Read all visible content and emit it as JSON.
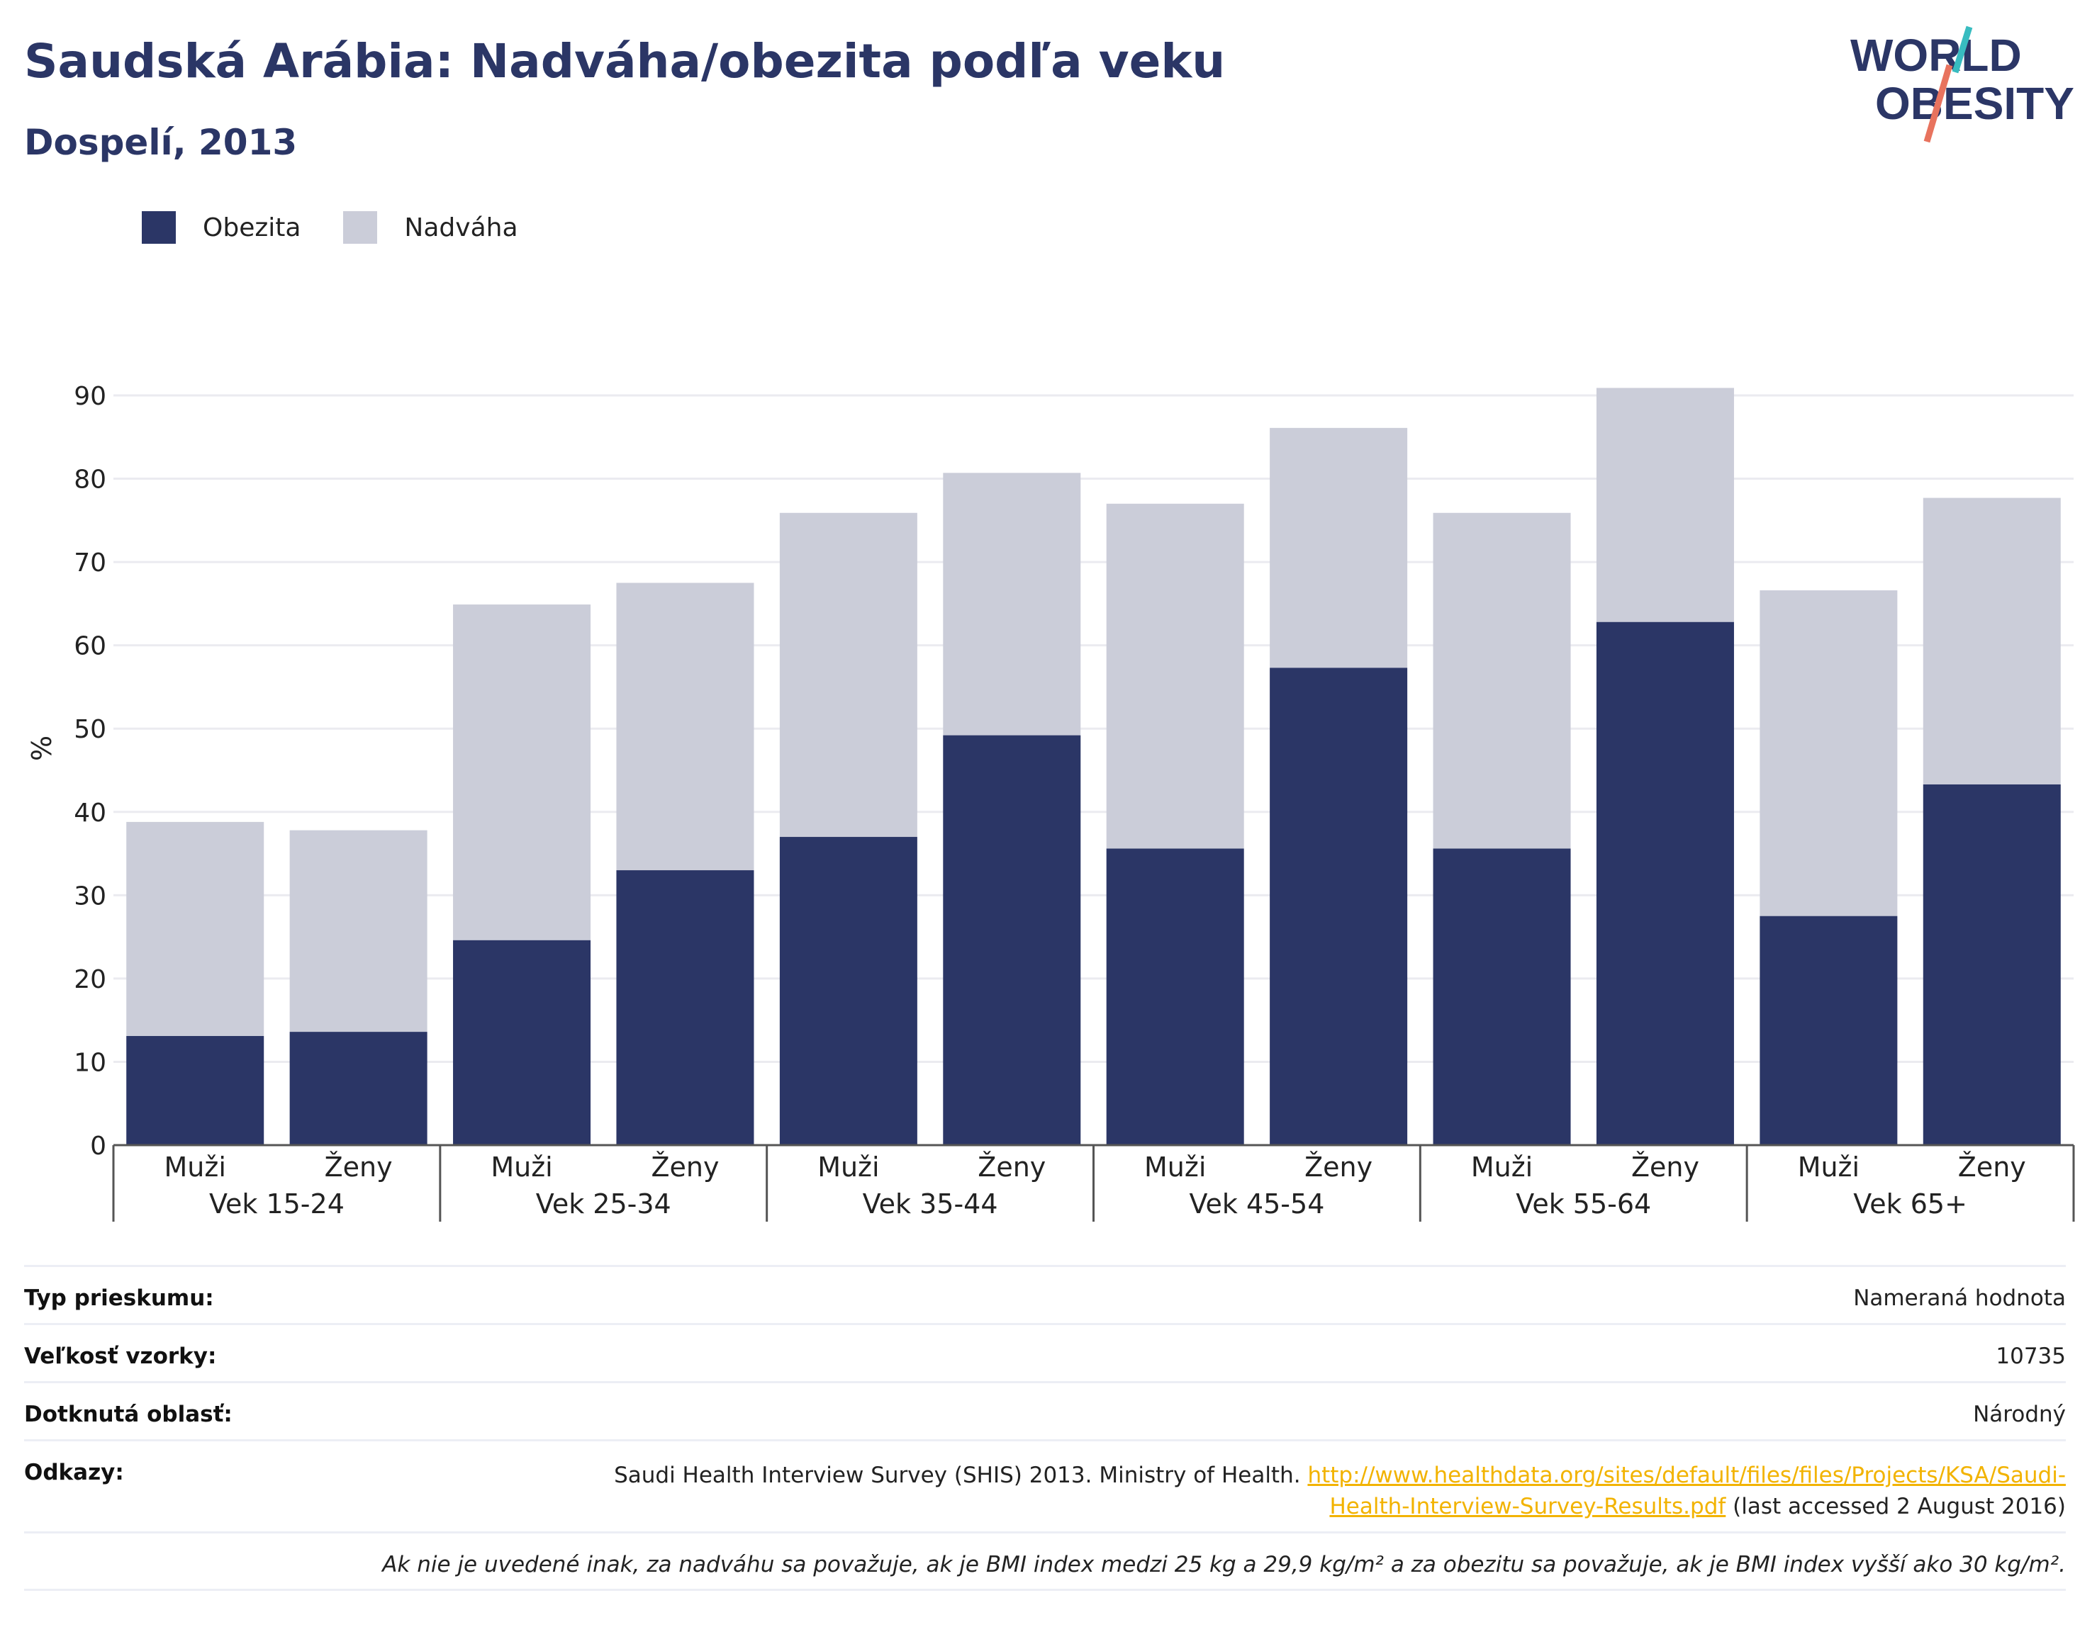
{
  "title": "Saudská Arábia: Nadváha/obezita podľa veku",
  "subtitle": "Dospelí, 2013",
  "logo": {
    "line1": "WORLD",
    "line2": "OBESITY"
  },
  "legend": [
    {
      "label": "Obezita",
      "color": "#2b3666"
    },
    {
      "label": "Nadváha",
      "color": "#cbcdd9"
    }
  ],
  "chart_data": {
    "type": "bar",
    "stacked": true,
    "ylabel": "%",
    "ylim": [
      0,
      90
    ],
    "yticks": [
      0,
      10,
      20,
      30,
      40,
      50,
      60,
      70,
      80,
      90
    ],
    "grid": true,
    "legend_position": "top-left",
    "groups": [
      "Vek 15-24",
      "Vek 25-34",
      "Vek 35-44",
      "Vek 45-54",
      "Vek 55-64",
      "Vek 65+"
    ],
    "subcategories": [
      "Muži",
      "Ženy"
    ],
    "series": [
      {
        "name": "Obezita",
        "color": "#2b3666",
        "values": [
          13.1,
          13.6,
          24.6,
          33.0,
          37.0,
          49.2,
          35.6,
          57.3,
          35.6,
          62.8,
          27.5,
          43.3
        ]
      },
      {
        "name": "Nadváha",
        "color": "#cbcdd9",
        "values": [
          25.7,
          24.2,
          40.3,
          34.5,
          38.9,
          31.5,
          41.4,
          28.8,
          40.3,
          28.1,
          39.1,
          34.4
        ]
      }
    ]
  },
  "info": {
    "survey_type_label": "Typ prieskumu:",
    "survey_type_value": "Nameraná hodnota",
    "sample_size_label": "Veľkosť vzorky:",
    "sample_size_value": "10735",
    "area_label": "Dotknutá oblasť:",
    "area_value": "Národný",
    "references_label": "Odkazy:",
    "references_text": "Saudi Health Interview Survey (SHIS) 2013. Ministry of Health. ",
    "references_link": "http://www.healthdata.org/sites/default/files/files/Projects/KSA/Saudi-Health-Interview-Survey-Results.pdf",
    "references_suffix": " (last accessed 2 August 2016)",
    "note": "Ak nie je uvedené inak, za nadváhu sa považuje, ak je BMI index medzi 25 kg a 29,9 kg/m² a za obezitu sa považuje, ak je BMI index vyšší ako 30 kg/m²."
  }
}
